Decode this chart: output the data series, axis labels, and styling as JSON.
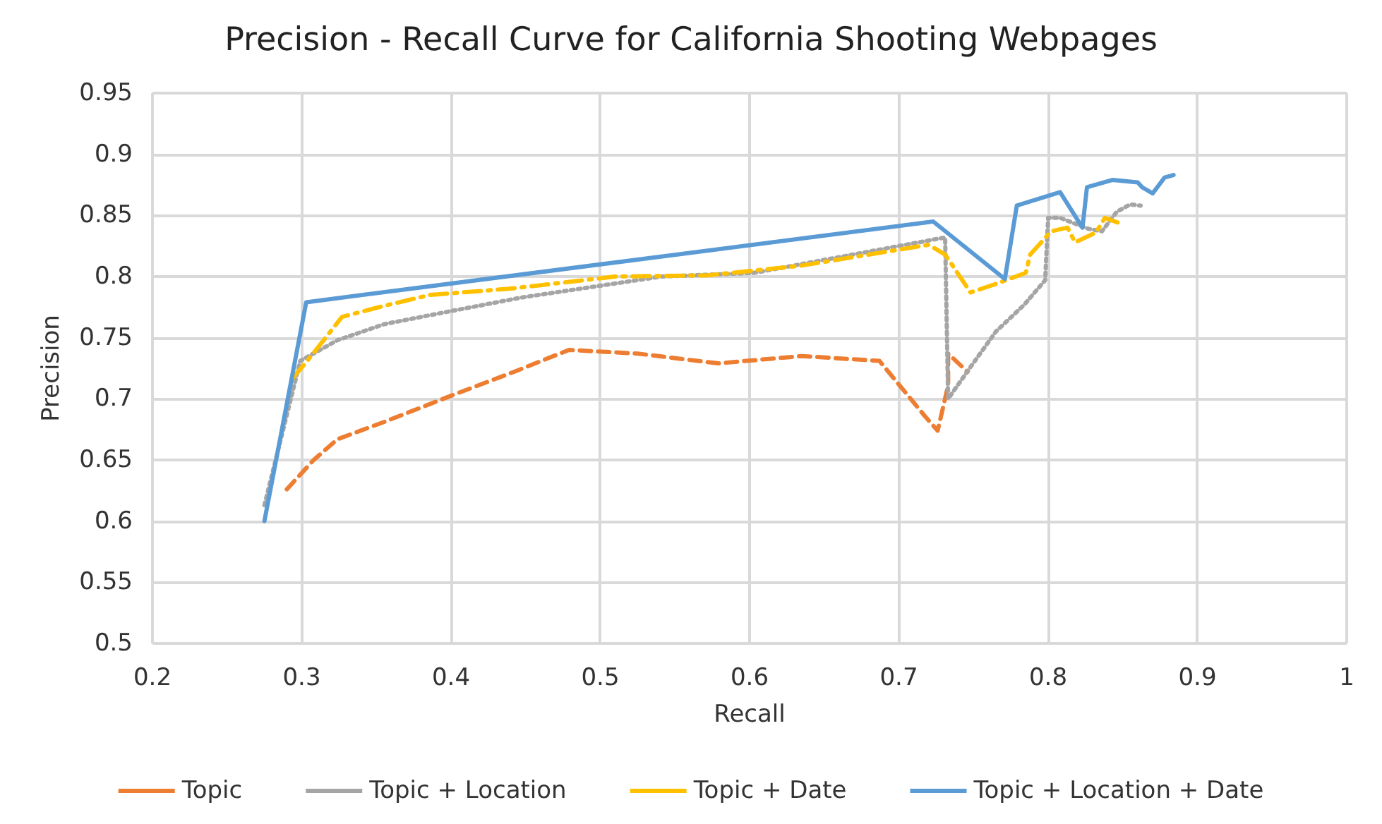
{
  "chart_data": {
    "type": "line",
    "title": "Precision - Recall Curve for California Shooting Webpages",
    "xlabel": "Recall",
    "ylabel": "Precision",
    "xlim": [
      0.2,
      1
    ],
    "xticks": [
      0.2,
      0.3,
      0.4,
      0.5,
      0.6,
      0.7,
      0.8,
      0.9,
      1
    ],
    "ylim": [
      0.5,
      0.95
    ],
    "yticks": [
      0.5,
      0.55,
      0.6,
      0.65,
      0.7,
      0.75,
      0.8,
      0.85,
      0.9,
      0.95
    ],
    "grid": true,
    "legend": "bottom",
    "marker": "none",
    "series": [
      {
        "name": "Topic",
        "color": "#ed7d31",
        "line_style": "dashed",
        "x": [
          0.29,
          0.308,
          0.324,
          0.355,
          0.401,
          0.442,
          0.479,
          0.525,
          0.579,
          0.635,
          0.687,
          0.718,
          0.726,
          0.733,
          0.733,
          0.746
        ],
        "values": [
          0.626,
          0.65,
          0.667,
          0.681,
          0.703,
          0.722,
          0.74,
          0.737,
          0.729,
          0.735,
          0.731,
          0.685,
          0.674,
          0.711,
          0.737,
          0.722
        ]
      },
      {
        "name": "Topic + Location",
        "color": "#a5a5a5",
        "line_style": "dotted",
        "x": [
          0.275,
          0.299,
          0.324,
          0.355,
          0.401,
          0.448,
          0.541,
          0.603,
          0.665,
          0.731,
          0.733,
          0.748,
          0.765,
          0.784,
          0.798,
          0.8,
          0.808,
          0.827,
          0.836,
          0.846,
          0.855,
          0.862
        ],
        "values": [
          0.613,
          0.731,
          0.748,
          0.761,
          0.772,
          0.783,
          0.8,
          0.803,
          0.817,
          0.832,
          0.7,
          0.726,
          0.755,
          0.777,
          0.797,
          0.848,
          0.848,
          0.839,
          0.837,
          0.853,
          0.859,
          0.858
        ]
      },
      {
        "name": "Topic + Date",
        "color": "#ffc000",
        "line_style": "dashdot",
        "x": [
          0.294,
          0.305,
          0.327,
          0.355,
          0.386,
          0.439,
          0.51,
          0.572,
          0.635,
          0.72,
          0.731,
          0.748,
          0.765,
          0.785,
          0.788,
          0.802,
          0.813,
          0.818,
          0.832,
          0.838,
          0.847
        ],
        "values": [
          0.717,
          0.733,
          0.767,
          0.776,
          0.785,
          0.79,
          0.8,
          0.801,
          0.809,
          0.826,
          0.818,
          0.787,
          0.794,
          0.803,
          0.818,
          0.837,
          0.84,
          0.828,
          0.836,
          0.848,
          0.844
        ]
      },
      {
        "name": "Topic + Location + Date",
        "color": "#5b9bd5",
        "line_style": "solid",
        "x": [
          0.275,
          0.303,
          0.723,
          0.771,
          0.779,
          0.808,
          0.823,
          0.826,
          0.843,
          0.86,
          0.863,
          0.87,
          0.878,
          0.884
        ],
        "values": [
          0.6,
          0.779,
          0.845,
          0.798,
          0.858,
          0.869,
          0.84,
          0.873,
          0.879,
          0.877,
          0.873,
          0.868,
          0.881,
          0.883
        ]
      }
    ]
  }
}
